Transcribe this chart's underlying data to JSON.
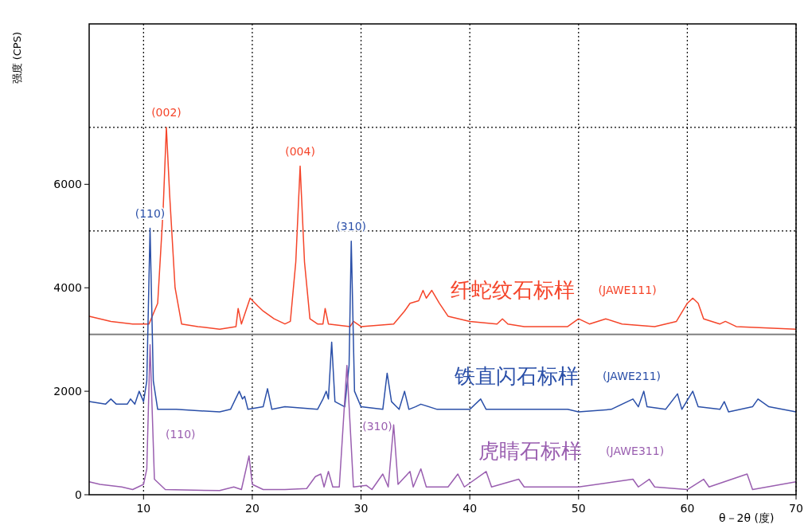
{
  "chart_data": {
    "type": "line",
    "xlabel": "θ－2θ (度)",
    "ylabel": "强度 (CPS)",
    "xlim": [
      5,
      70
    ],
    "xticks": [
      10,
      20,
      30,
      40,
      50,
      60,
      70
    ],
    "ylim": [
      0,
      9100
    ],
    "yticks": [
      0,
      2000,
      4000,
      6000
    ],
    "grid": "x",
    "line_style": "solid",
    "marker": "none",
    "series": [
      {
        "name": "纤蛇纹石标样",
        "color": "#f5452a",
        "x": [
          5,
          7,
          9,
          10.5,
          11.3,
          11.8,
          12.1,
          12.4,
          12.9,
          13.5,
          15,
          17,
          18.5,
          18.7,
          19,
          19.8,
          20.5,
          21,
          22,
          23,
          23.5,
          24,
          24.4,
          24.8,
          25.3,
          26,
          26.5,
          26.7,
          27,
          29,
          29.3,
          30,
          33,
          34,
          34.5,
          35.3,
          35.7,
          36,
          36.5,
          37.2,
          38,
          40,
          42.5,
          43,
          43.5,
          45,
          49,
          50,
          51,
          52.5,
          54,
          57,
          59,
          60,
          60.5,
          61,
          61.5,
          63,
          63.5,
          64.5,
          70
        ],
        "values": [
          3450,
          3350,
          3300,
          3300,
          3700,
          5500,
          7100,
          5800,
          4000,
          3300,
          3250,
          3200,
          3250,
          3600,
          3300,
          3800,
          3650,
          3550,
          3400,
          3300,
          3350,
          4500,
          6350,
          4500,
          3400,
          3300,
          3300,
          3600,
          3300,
          3250,
          3350,
          3250,
          3300,
          3550,
          3700,
          3750,
          3950,
          3800,
          3950,
          3700,
          3450,
          3350,
          3300,
          3400,
          3300,
          3250,
          3250,
          3400,
          3300,
          3400,
          3300,
          3250,
          3350,
          3700,
          3800,
          3700,
          3400,
          3300,
          3350,
          3250,
          3200
        ]
      },
      {
        "name": "铁直闪石标样",
        "color": "#2a4fa8",
        "x": [
          5,
          6.5,
          7,
          7.5,
          8.5,
          8.8,
          9.2,
          9.6,
          10,
          10.3,
          10.6,
          10.9,
          11.3,
          13,
          17,
          18,
          18.8,
          19.1,
          19.3,
          19.6,
          21,
          21.4,
          21.8,
          23,
          26,
          26.5,
          26.8,
          27,
          27.3,
          27.6,
          28.5,
          28.9,
          29.1,
          29.4,
          30,
          32,
          32.4,
          32.8,
          33.5,
          34,
          34.4,
          35,
          35.5,
          37,
          40,
          41,
          41.5,
          45,
          49,
          50,
          53,
          55,
          55.5,
          56,
          56.3,
          58,
          59.1,
          59.5,
          60.5,
          61,
          63,
          63.4,
          63.8,
          66,
          66.5,
          67.5,
          70
        ],
        "values": [
          1800,
          1750,
          1850,
          1750,
          1750,
          1850,
          1750,
          2000,
          1800,
          2200,
          5150,
          2200,
          1650,
          1650,
          1600,
          1650,
          2000,
          1850,
          1900,
          1650,
          1700,
          2050,
          1650,
          1700,
          1650,
          1850,
          2000,
          1850,
          2950,
          1800,
          1700,
          2500,
          4900,
          2000,
          1700,
          1650,
          2350,
          1800,
          1650,
          2000,
          1650,
          1700,
          1750,
          1650,
          1650,
          1850,
          1650,
          1650,
          1650,
          1600,
          1650,
          1850,
          1700,
          2000,
          1700,
          1650,
          1950,
          1650,
          2000,
          1700,
          1650,
          1800,
          1600,
          1700,
          1850,
          1700,
          1600
        ]
      },
      {
        "name": "虎睛石标样",
        "color": "#9a5fb0",
        "x": [
          5,
          6,
          8,
          9,
          10,
          10.3,
          10.6,
          11,
          12,
          17,
          18.3,
          19,
          19.7,
          20,
          21,
          23,
          25,
          25.8,
          26.3,
          26.6,
          27,
          27.4,
          28,
          28.7,
          29.3,
          30.5,
          31,
          32,
          32.5,
          33,
          33.4,
          34.5,
          34.8,
          35.5,
          36,
          38,
          38.9,
          39.5,
          41.5,
          42,
          44.5,
          45,
          50,
          55,
          55.5,
          56.5,
          57,
          60,
          61.5,
          62,
          65.5,
          66,
          70
        ],
        "values": [
          250,
          200,
          150,
          100,
          200,
          500,
          2900,
          300,
          100,
          80,
          150,
          100,
          750,
          200,
          100,
          100,
          120,
          350,
          400,
          150,
          450,
          150,
          150,
          2500,
          150,
          180,
          100,
          400,
          150,
          1350,
          200,
          450,
          150,
          500,
          150,
          150,
          400,
          150,
          450,
          150,
          300,
          150,
          150,
          300,
          150,
          300,
          150,
          100,
          300,
          150,
          400,
          100,
          250
        ]
      }
    ],
    "ref_lines": [
      {
        "axis": "y",
        "value": 7100,
        "line_style": "dotted",
        "color": "#000000"
      },
      {
        "axis": "y",
        "value": 5100,
        "line_style": "dotted",
        "color": "#000000"
      },
      {
        "axis": "y",
        "value": 3100,
        "line_style": "solid",
        "color": "#808080"
      }
    ],
    "annotations": [
      {
        "text": "(002)",
        "x": 12.1,
        "y": 7100
      },
      {
        "text": "(004)",
        "x": 24.4,
        "y": 6350
      },
      {
        "text": "(110)",
        "x": 10.6,
        "y": 5150
      },
      {
        "text": "(310)",
        "x": 29.1,
        "y": 4900
      },
      "(110)",
      "(310)",
      "(JAWE111)",
      "(JAWE211)",
      "(JAWE311)"
    ]
  }
}
